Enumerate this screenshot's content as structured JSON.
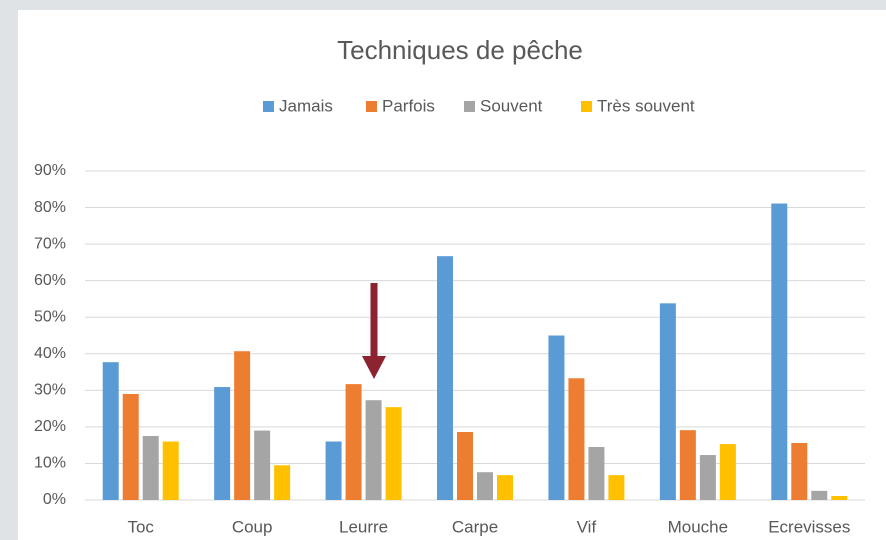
{
  "chart_data": {
    "type": "bar",
    "title": "Techniques de pêche",
    "categories": [
      "Toc",
      "Coup",
      "Leurre",
      "Carpe",
      "Vif",
      "Mouche",
      "Ecrevisses"
    ],
    "series": [
      {
        "name": "Jamais",
        "color": "#5b9bd5",
        "values": [
          37.7,
          30.9,
          16,
          66.7,
          45,
          53.8,
          81.1
        ]
      },
      {
        "name": "Parfois",
        "color": "#ed7d31",
        "values": [
          29,
          40.7,
          31.7,
          18.6,
          33.3,
          19.1,
          15.6
        ]
      },
      {
        "name": "Souvent",
        "color": "#a5a5a5",
        "values": [
          17.5,
          19,
          27.3,
          7.6,
          14.5,
          12.3,
          2.5
        ]
      },
      {
        "name": "Très souvent",
        "color": "#ffc000",
        "values": [
          16,
          9.5,
          25.4,
          6.8,
          6.8,
          15.3,
          1.1
        ]
      }
    ],
    "ylim": [
      0,
      90
    ],
    "yticks": [
      {
        "value": 0,
        "label": "0%"
      },
      {
        "value": 10,
        "label": "10%"
      },
      {
        "value": 20,
        "label": "20%"
      },
      {
        "value": 30,
        "label": "30%"
      },
      {
        "value": 40,
        "label": "40%"
      },
      {
        "value": 50,
        "label": "50%"
      },
      {
        "value": 60,
        "label": "60%"
      },
      {
        "value": 70,
        "label": "70%"
      },
      {
        "value": 80,
        "label": "80%"
      },
      {
        "value": 90,
        "label": "90%"
      }
    ],
    "grid": true,
    "legend": "top"
  }
}
